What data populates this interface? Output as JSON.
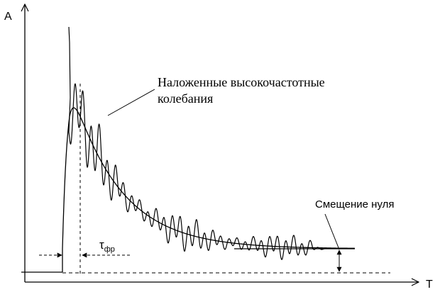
{
  "axes": {
    "x_label": "T",
    "y_label": "A"
  },
  "annotations": {
    "hf_line1": "Наложенные высокочастотные",
    "hf_line2": "колебания",
    "zero_shift": "Смещение нуля",
    "tau_main": "τ",
    "tau_sub": "фр"
  },
  "colors": {
    "ink": "#000000",
    "background": "#ffffff"
  }
}
